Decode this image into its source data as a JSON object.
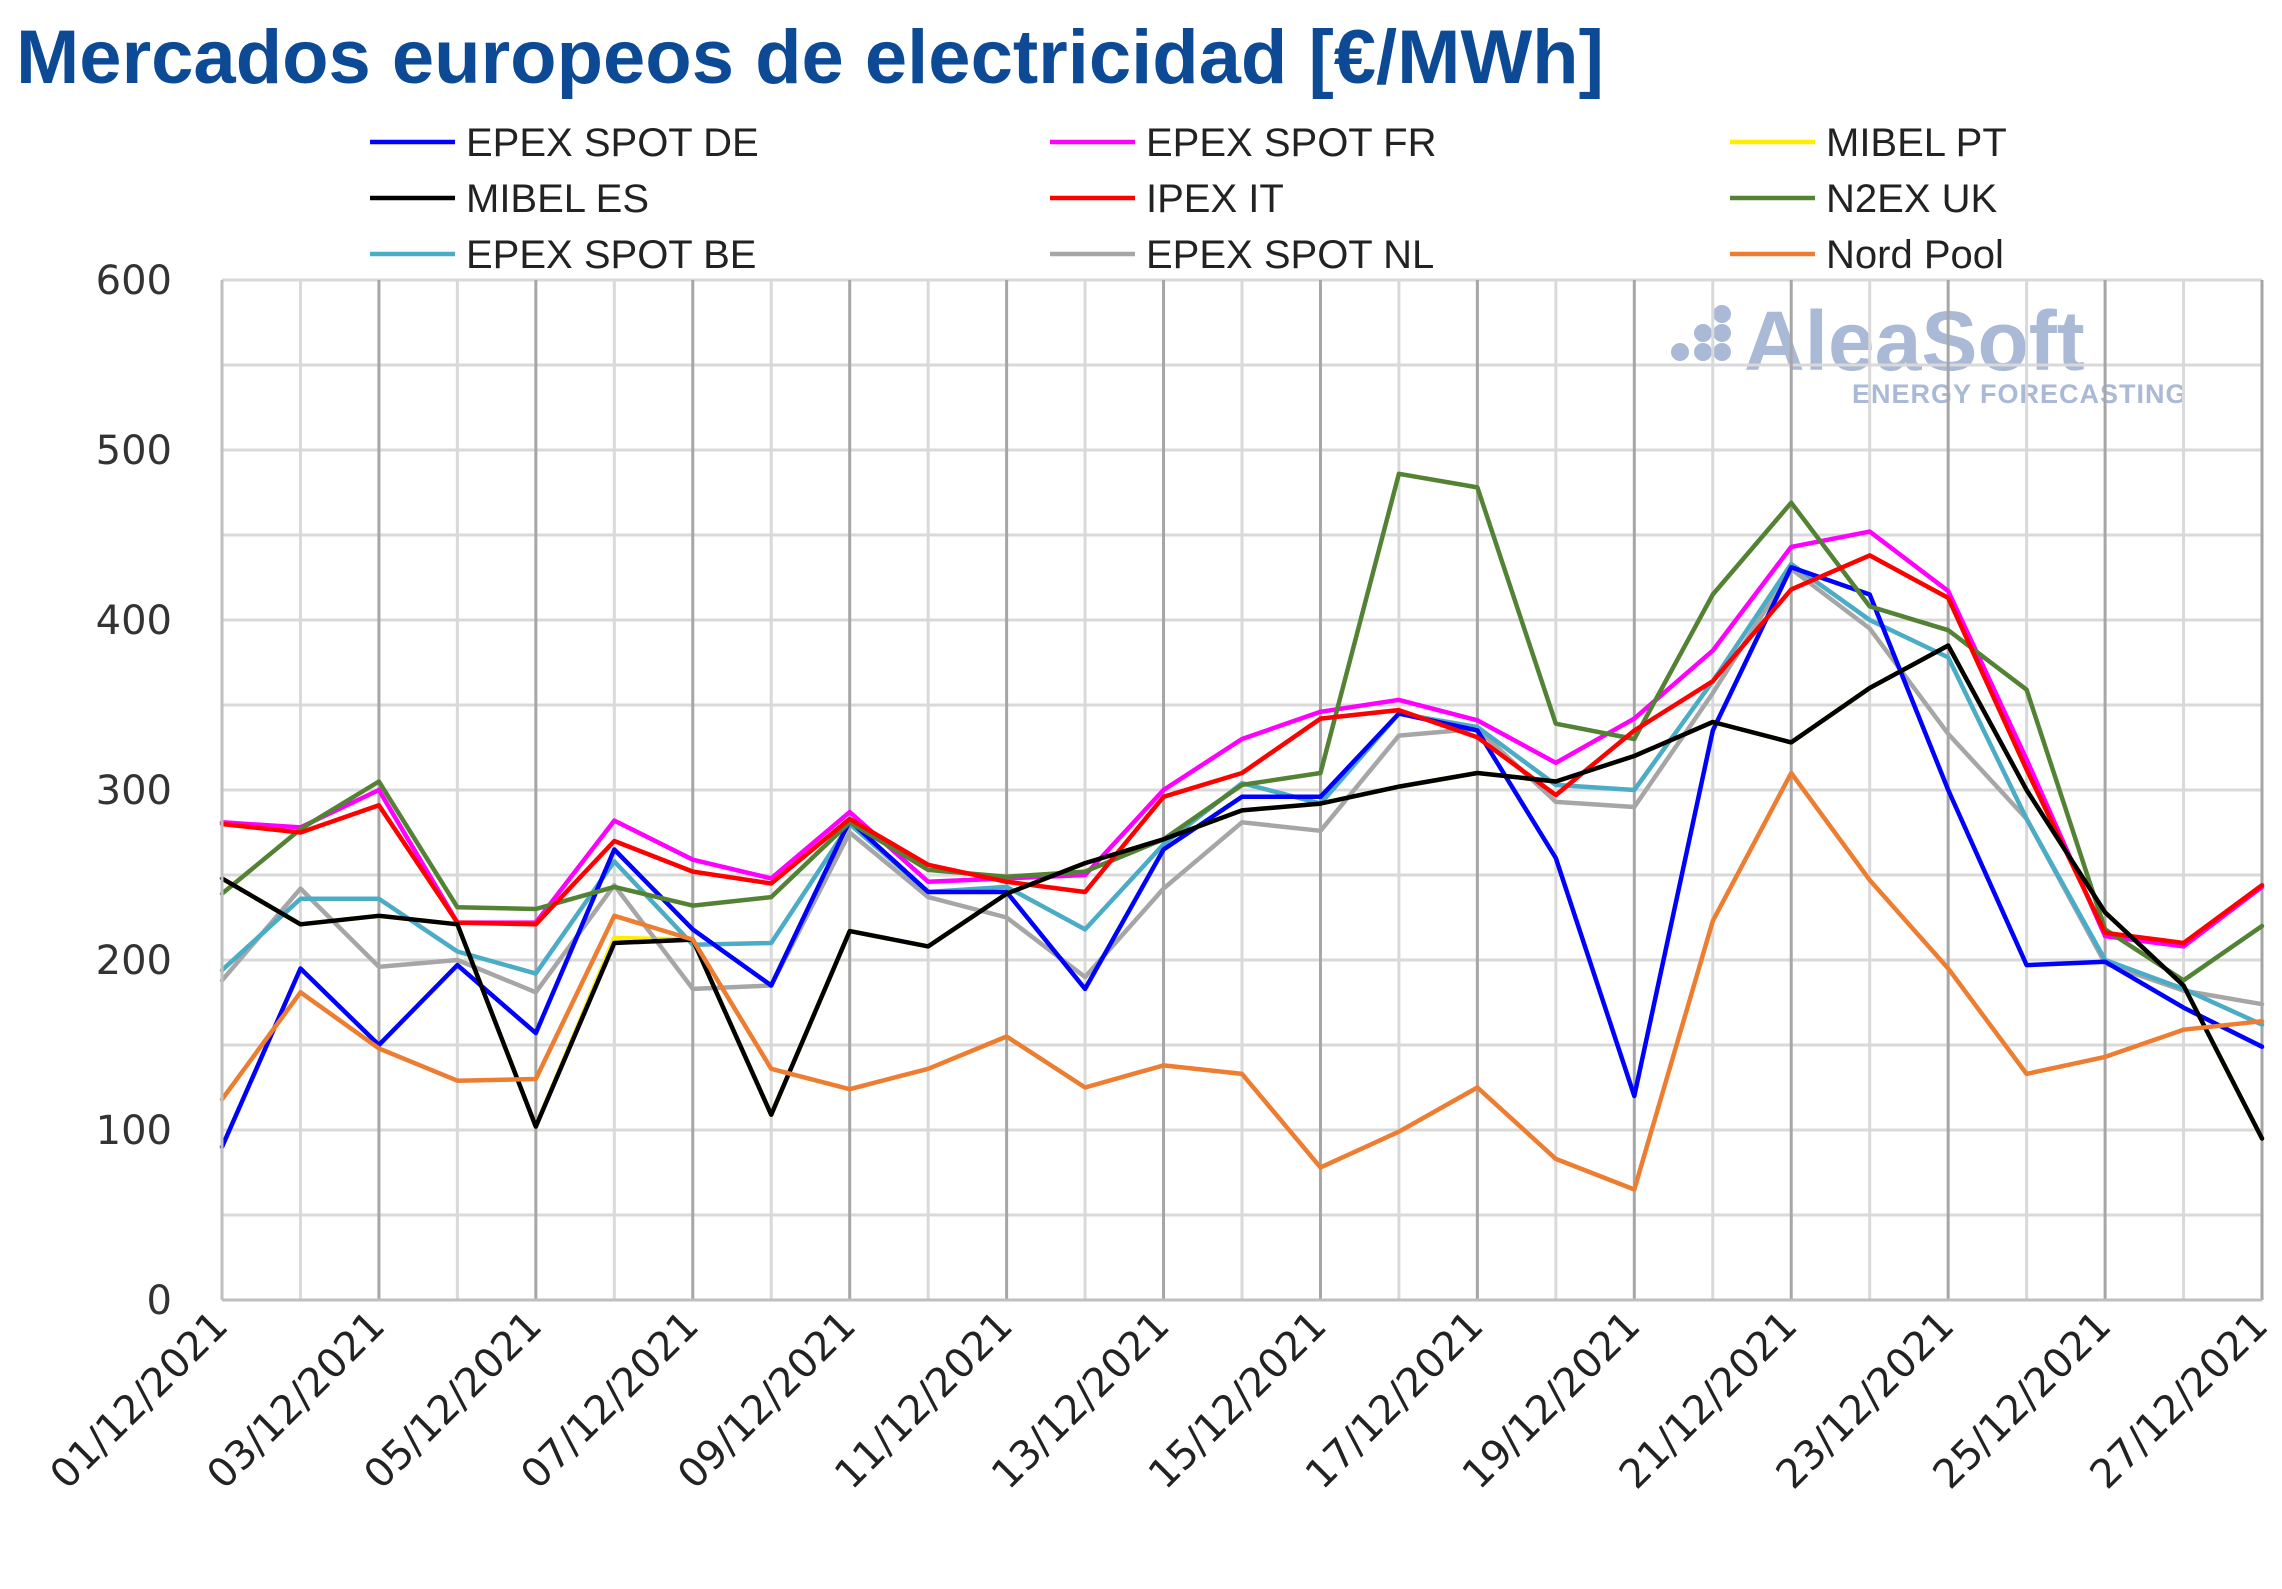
{
  "chart_data": {
    "type": "line",
    "title": "Mercados europeos de electricidad [€/MWh]",
    "xlabel": "",
    "ylabel": "",
    "ylim": [
      0,
      600
    ],
    "yticks": [
      0,
      100,
      200,
      300,
      400,
      500,
      600
    ],
    "grid": true,
    "legend_position": "top",
    "x": [
      "01/12/2021",
      "02/12/2021",
      "03/12/2021",
      "04/12/2021",
      "05/12/2021",
      "06/12/2021",
      "07/12/2021",
      "08/12/2021",
      "09/12/2021",
      "10/12/2021",
      "11/12/2021",
      "12/12/2021",
      "13/12/2021",
      "14/12/2021",
      "15/12/2021",
      "16/12/2021",
      "17/12/2021",
      "18/12/2021",
      "19/12/2021",
      "20/12/2021",
      "21/12/2021",
      "22/12/2021",
      "23/12/2021",
      "24/12/2021",
      "25/12/2021",
      "26/12/2021",
      "27/12/2021"
    ],
    "x_tick_labels": [
      "01/12/2021",
      "03/12/2021",
      "05/12/2021",
      "07/12/2021",
      "09/12/2021",
      "11/12/2021",
      "13/12/2021",
      "15/12/2021",
      "17/12/2021",
      "19/12/2021",
      "21/12/2021",
      "23/12/2021",
      "25/12/2021",
      "27/12/2021"
    ],
    "series": [
      {
        "name": "MIBEL PT",
        "color": "#ffee00",
        "values": [
          248,
          221,
          226,
          221,
          102,
          213,
          212,
          109,
          217,
          208,
          239,
          257,
          271,
          288,
          292,
          302,
          310,
          305,
          320,
          340,
          328,
          360,
          385,
          300,
          228,
          185,
          95
        ]
      },
      {
        "name": "EPEX SPOT NL",
        "color": "#a6a6a6",
        "values": [
          188,
          242,
          196,
          200,
          181,
          244,
          183,
          185,
          275,
          237,
          225,
          190,
          242,
          281,
          276,
          332,
          336,
          293,
          290,
          357,
          430,
          395,
          333,
          283,
          198,
          182,
          174
        ]
      },
      {
        "name": "EPEX SPOT BE",
        "color": "#4bacc6",
        "values": [
          194,
          236,
          236,
          205,
          192,
          258,
          209,
          210,
          280,
          240,
          243,
          218,
          268,
          304,
          292,
          345,
          337,
          303,
          300,
          364,
          433,
          400,
          378,
          283,
          200,
          183,
          162
        ]
      },
      {
        "name": "EPEX SPOT DE",
        "color": "#0000ff",
        "values": [
          90,
          195,
          150,
          197,
          157,
          265,
          218,
          185,
          282,
          240,
          240,
          183,
          265,
          296,
          296,
          345,
          335,
          260,
          120,
          335,
          431,
          415,
          300,
          197,
          199,
          172,
          149
        ]
      },
      {
        "name": "EPEX SPOT FR",
        "color": "#ff00ff",
        "values": [
          281,
          278,
          300,
          222,
          222,
          282,
          259,
          248,
          287,
          246,
          248,
          250,
          300,
          330,
          346,
          353,
          341,
          316,
          342,
          382,
          443,
          452,
          417,
          318,
          214,
          208,
          243
        ]
      },
      {
        "name": "N2EX UK",
        "color": "#548235",
        "values": [
          239,
          277,
          305,
          231,
          230,
          243,
          232,
          237,
          281,
          253,
          249,
          252,
          271,
          303,
          310,
          486,
          478,
          339,
          330,
          415,
          469,
          408,
          394,
          359,
          218,
          188,
          220
        ]
      },
      {
        "name": "IPEX IT",
        "color": "#ff0000",
        "values": [
          280,
          275,
          291,
          222,
          221,
          270,
          252,
          245,
          283,
          256,
          246,
          240,
          296,
          310,
          342,
          347,
          331,
          297,
          335,
          364,
          418,
          438,
          413,
          312,
          216,
          210,
          244
        ]
      },
      {
        "name": "MIBEL ES",
        "color": "#000000",
        "values": [
          248,
          221,
          226,
          221,
          102,
          210,
          212,
          109,
          217,
          208,
          239,
          257,
          271,
          288,
          292,
          302,
          310,
          305,
          320,
          340,
          328,
          360,
          385,
          300,
          228,
          185,
          95
        ]
      },
      {
        "name": "Nord Pool",
        "color": "#ed7d31",
        "values": [
          118,
          181,
          148,
          129,
          130,
          226,
          212,
          136,
          124,
          136,
          155,
          125,
          138,
          133,
          78,
          99,
          125,
          83,
          65,
          223,
          310,
          247,
          195,
          133,
          143,
          159,
          164
        ]
      }
    ],
    "legend": [
      [
        "EPEX SPOT DE",
        "EPEX SPOT FR",
        "MIBEL PT"
      ],
      [
        "MIBEL ES",
        "IPEX IT",
        "N2EX UK"
      ],
      [
        "EPEX SPOT BE",
        "EPEX SPOT NL",
        "Nord Pool"
      ]
    ],
    "watermark": {
      "main": "AleaSoft",
      "sub": "ENERGY FORECASTING"
    }
  }
}
